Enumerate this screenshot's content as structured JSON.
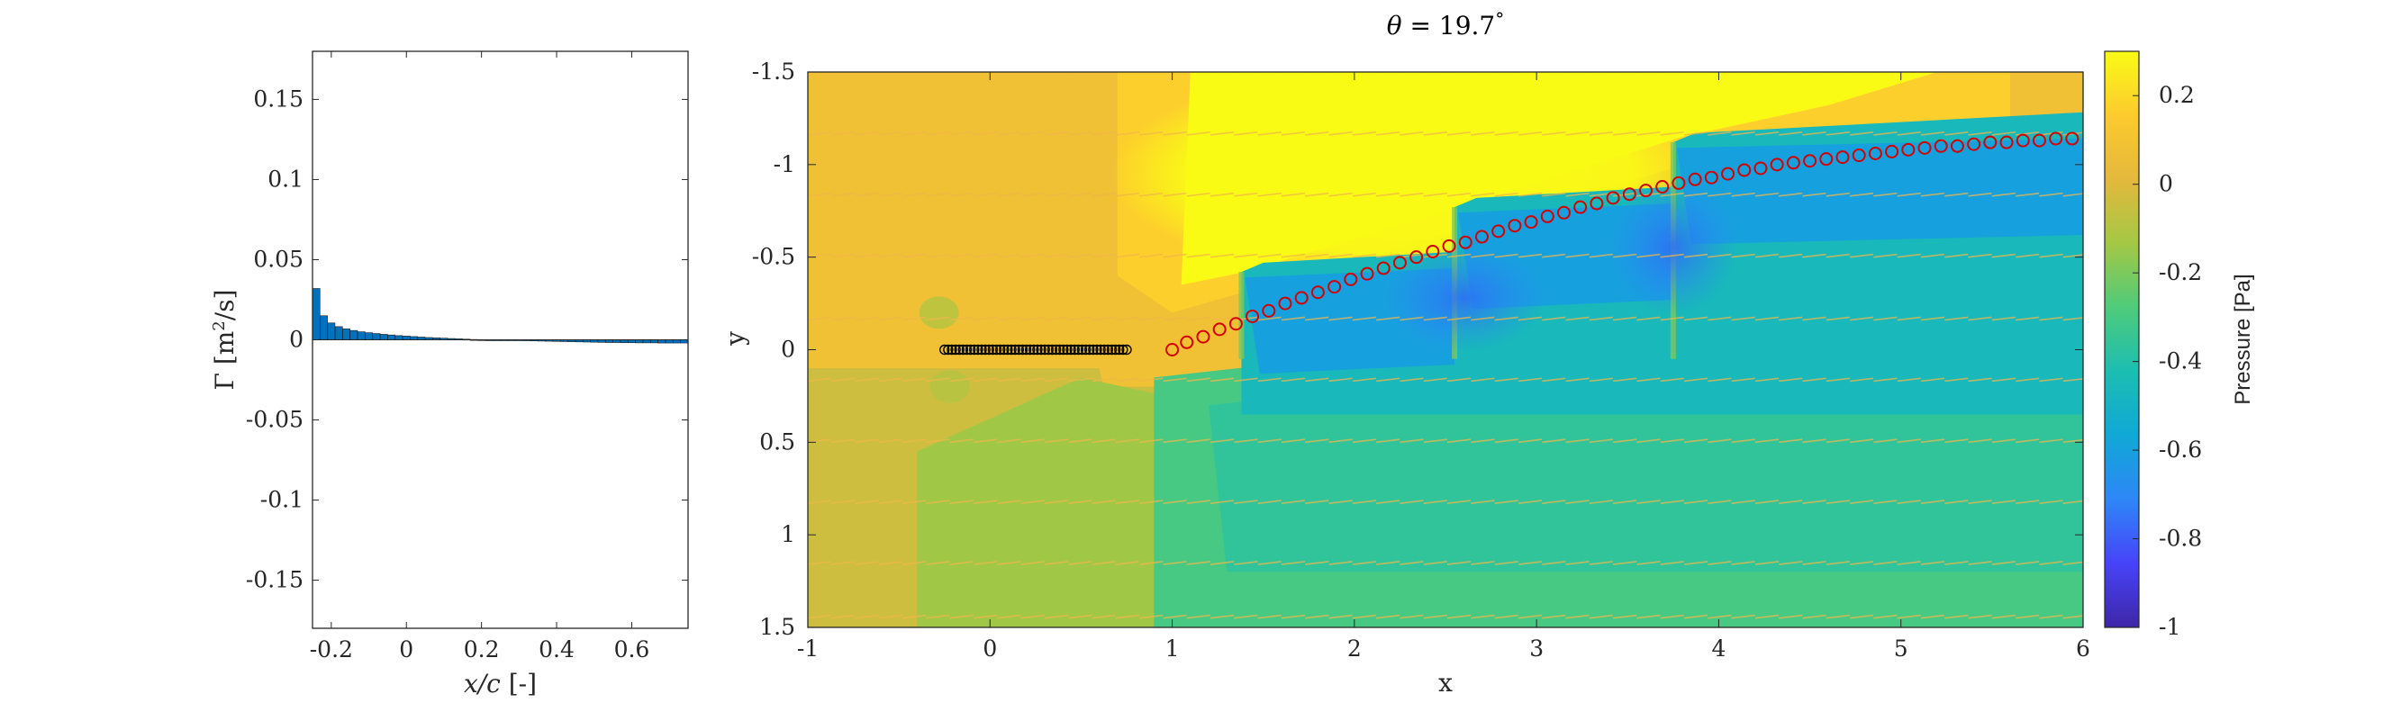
{
  "chart_data": [
    {
      "type": "bar",
      "name": "circulation-distribution",
      "xlabel": "x/c [-]",
      "ylabel": "Γ [m²/s]",
      "ylabel_parts": {
        "sym": "Γ",
        "open": "[m",
        "exp": "2",
        "close": "/s]"
      },
      "xlabel_parts": {
        "sym": "x/c",
        "unit": "[-]"
      },
      "xlim": [
        -0.25,
        0.75
      ],
      "ylim": [
        -0.18,
        0.18
      ],
      "xticks": [
        -0.2,
        0,
        0.2,
        0.4,
        0.6
      ],
      "xtick_labels": [
        "-0.2",
        "0",
        "0.2",
        "0.4",
        "0.6"
      ],
      "yticks": [
        0.15,
        0.1,
        0.05,
        0,
        -0.05,
        -0.1,
        -0.15
      ],
      "ytick_labels": [
        "0.15",
        "0.1",
        "0.05",
        "0",
        "-0.05",
        "-0.1",
        "-0.15"
      ],
      "bar_width": 0.0196,
      "x": [
        -0.24,
        -0.22,
        -0.2,
        -0.18,
        -0.16,
        -0.14,
        -0.12,
        -0.1,
        -0.08,
        -0.06,
        -0.04,
        -0.02,
        0,
        0.02,
        0.04,
        0.06,
        0.08,
        0.1,
        0.12,
        0.14,
        0.16,
        0.18,
        0.2,
        0.22,
        0.24,
        0.26,
        0.28,
        0.3,
        0.32,
        0.34,
        0.36,
        0.38,
        0.4,
        0.42,
        0.44,
        0.46,
        0.48,
        0.5,
        0.52,
        0.54,
        0.56,
        0.58,
        0.6,
        0.62,
        0.64,
        0.66,
        0.68,
        0.7,
        0.72,
        0.74
      ],
      "values": [
        0.032,
        0.015,
        0.0105,
        0.0082,
        0.0068,
        0.0058,
        0.005,
        0.0044,
        0.0039,
        0.0034,
        0.003,
        0.0026,
        0.0023,
        0.002,
        0.0017,
        0.0014,
        0.0012,
        0.001,
        0.0008,
        0.0006,
        0.0004,
        0.0002,
        0.0001,
        -0.0001,
        -0.0002,
        -0.0003,
        -0.0004,
        -0.0005,
        -0.0006,
        -0.0007,
        -0.0008,
        -0.0009,
        -0.001,
        -0.0011,
        -0.0012,
        -0.0013,
        -0.0014,
        -0.0015,
        -0.0016,
        -0.0017,
        -0.0017,
        -0.0018,
        -0.0018,
        -0.0019,
        -0.0019,
        -0.0019,
        -0.002,
        -0.002,
        -0.002,
        -0.002
      ],
      "bar_color": "#0072BD",
      "grid": false
    },
    {
      "type": "heatmap",
      "name": "pressure-field",
      "title": "θ = 19.7°",
      "title_parts": {
        "sym": "θ",
        "mid": " = 19.7",
        "deg": "°"
      },
      "xlabel": "x",
      "ylabel": "y",
      "xlim": [
        -1,
        6
      ],
      "ylim": [
        -1.5,
        1.5
      ],
      "y_axis_reversed": true,
      "xticks": [
        -1,
        0,
        1,
        2,
        3,
        4,
        5,
        6
      ],
      "xtick_labels": [
        "-1",
        "0",
        "1",
        "2",
        "3",
        "4",
        "5",
        "6"
      ],
      "yticks": [
        -1.5,
        -1,
        -0.5,
        0,
        0.5,
        1,
        1.5
      ],
      "ytick_labels": [
        "-1.5",
        "-1",
        "-0.5",
        "0",
        "0.5",
        "1",
        "1.5"
      ],
      "colorbar": {
        "label": "Pressure [Pa]",
        "range": [
          -1,
          0.3
        ],
        "ticks": [
          0.2,
          0,
          -0.2,
          -0.4,
          -0.6,
          -0.8,
          -1
        ],
        "tick_labels": [
          "0.2",
          "0",
          "-0.2",
          "-0.4",
          "-0.6",
          "-0.8",
          "-1"
        ],
        "colormap": "parula",
        "colormap_stops": [
          "#3E26A8",
          "#4743F8",
          "#2E87F7",
          "#10A8D6",
          "#1BBEB2",
          "#4FCB7A",
          "#A4C844",
          "#E4B83C",
          "#FDCA2E",
          "#F9FB15"
        ]
      },
      "wake_regions": [
        {
          "x_from": 1.38,
          "x_to": 2.55,
          "top_y": -0.42
        },
        {
          "x_from": 2.55,
          "x_to": 3.75,
          "top_y": -0.77
        },
        {
          "x_from": 3.75,
          "x_to": 6.0,
          "top_y": -1.12
        }
      ],
      "bound_vortices": {
        "x_from": -0.25,
        "x_to": 0.75,
        "count": 50,
        "y": 0,
        "marker": "circle",
        "color": "#000000"
      },
      "wake_vortices": {
        "marker": "circle",
        "color": "#D40000",
        "x": [
          1.0,
          1.08,
          1.17,
          1.26,
          1.35,
          1.44,
          1.53,
          1.62,
          1.71,
          1.8,
          1.89,
          1.98,
          2.07,
          2.16,
          2.25,
          2.34,
          2.43,
          2.52,
          2.61,
          2.7,
          2.79,
          2.88,
          2.97,
          3.06,
          3.15,
          3.24,
          3.33,
          3.42,
          3.51,
          3.6,
          3.69,
          3.78,
          3.87,
          3.96,
          4.05,
          4.14,
          4.23,
          4.32,
          4.41,
          4.5,
          4.59,
          4.68,
          4.77,
          4.86,
          4.95,
          5.04,
          5.13,
          5.22,
          5.31,
          5.4,
          5.49,
          5.58,
          5.67,
          5.76,
          5.85,
          5.94
        ],
        "y": [
          0.0,
          -0.04,
          -0.07,
          -0.11,
          -0.14,
          -0.18,
          -0.21,
          -0.25,
          -0.28,
          -0.31,
          -0.34,
          -0.38,
          -0.41,
          -0.44,
          -0.47,
          -0.5,
          -0.53,
          -0.56,
          -0.58,
          -0.61,
          -0.64,
          -0.67,
          -0.69,
          -0.72,
          -0.74,
          -0.77,
          -0.79,
          -0.82,
          -0.84,
          -0.86,
          -0.88,
          -0.9,
          -0.92,
          -0.93,
          -0.95,
          -0.97,
          -0.98,
          -1.0,
          -1.01,
          -1.02,
          -1.03,
          -1.04,
          -1.05,
          -1.06,
          -1.07,
          -1.08,
          -1.09,
          -1.1,
          -1.1,
          -1.11,
          -1.12,
          -1.12,
          -1.13,
          -1.13,
          -1.14,
          -1.14
        ]
      },
      "quiver_rows_y": [
        -1.5,
        -1.16,
        -0.83,
        -0.5,
        -0.16,
        0.17,
        0.5,
        0.83,
        1.16,
        1.45
      ],
      "quiver_color": "#F2B64A"
    }
  ]
}
